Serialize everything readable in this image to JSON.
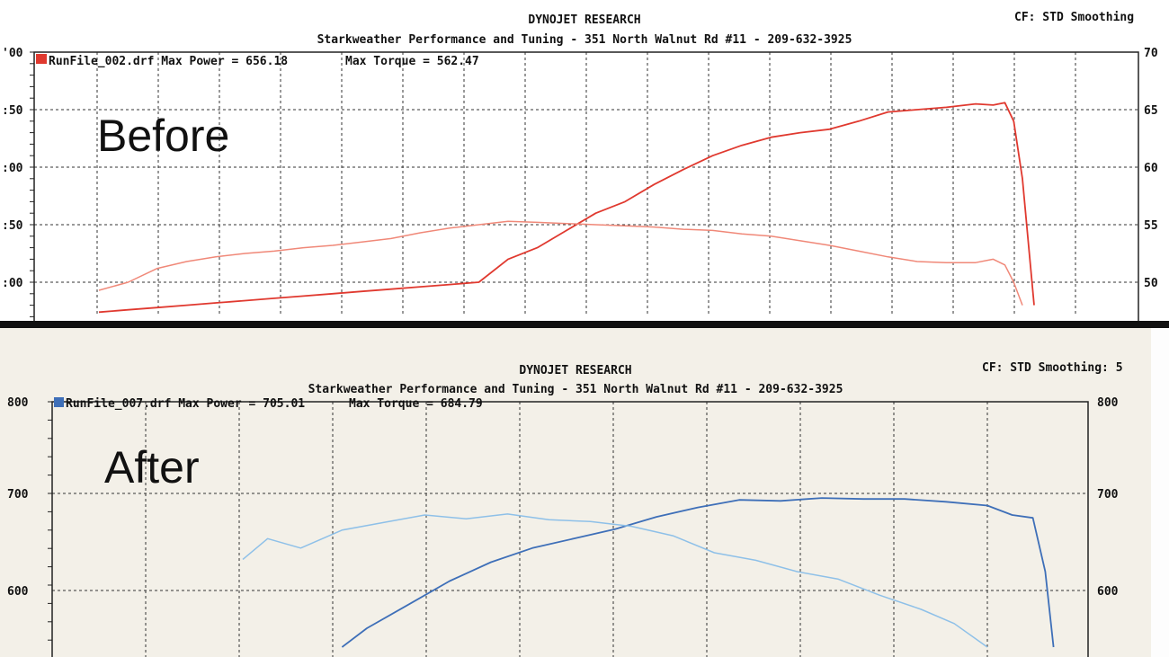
{
  "charts": [
    {
      "panel_label": "Before",
      "header_brand": "DYNOJET RESEARCH",
      "header_shop": "Starkweather Performance and Tuning - 351 North Walnut Rd #11 - 209-632-3925",
      "header_cf": "CF: STD  Smoothing",
      "legend_run": "RunFile_002.drf Max Power = 656.18",
      "legend_torque": "Max Torque = 562.47",
      "colors": {
        "power": "#e0392f",
        "torque": "#f08878",
        "swatch": "#e0392f"
      }
    },
    {
      "panel_label": "After",
      "header_brand": "DYNOJET RESEARCH",
      "header_shop": "Starkweather Performance and Tuning - 351 North Walnut Rd #11 - 209-632-3925",
      "header_cf": "CF: STD  Smoothing: 5",
      "legend_run": "RunFile_007.drf Max Power = 705.01",
      "legend_torque": "Max Torque = 684.79",
      "colors": {
        "power": "#3e6fb8",
        "torque": "#8ec0e8",
        "swatch": "#3e6fb8"
      }
    }
  ],
  "chart_data": [
    {
      "type": "line",
      "title": "DYNOJET RESEARCH",
      "subtitle": "Starkweather Performance and Tuning - 351 North Walnut Rd #11 - 209-632-3925",
      "ylim": [
        480,
        700
      ],
      "y_ticks": [
        "700",
        "650",
        "600",
        "550",
        "500"
      ],
      "y_ticks_right": [
        "700",
        "650",
        "600",
        "550",
        "500"
      ],
      "y_tick_labels_left": [
        "'00",
        ":50",
        ":00",
        ":50",
        ":00"
      ],
      "y_tick_labels_right": [
        "70",
        "65",
        "60",
        "55",
        "50"
      ],
      "x_count": 18,
      "series": [
        {
          "name": "Max Power",
          "x": [
            0,
            0.5,
            1,
            1.5,
            2,
            2.5,
            3,
            3.5,
            4,
            4.5,
            5,
            5.5,
            6,
            6.5,
            7,
            7.5,
            8,
            8.5,
            9,
            9.5,
            10,
            10.5,
            11,
            11.5,
            12,
            12.5,
            13,
            13.5,
            14,
            14.5,
            15,
            15.3,
            15.5,
            15.65,
            15.8,
            16.0
          ],
          "values": [
            474,
            476,
            478,
            480,
            482,
            484,
            486,
            488,
            490,
            492,
            494,
            496,
            498,
            500,
            520,
            530,
            545,
            560,
            570,
            585,
            598,
            610,
            619,
            626,
            630,
            633,
            640,
            648,
            650,
            652,
            655,
            654,
            656,
            640,
            590,
            480
          ]
        },
        {
          "name": "Max Torque",
          "x": [
            0,
            0.5,
            1,
            1.5,
            2,
            2.5,
            3,
            3.5,
            4,
            4.5,
            5,
            5.5,
            6,
            6.5,
            7,
            7.5,
            8,
            8.5,
            9,
            9.5,
            10,
            10.5,
            11,
            11.5,
            12,
            12.5,
            13,
            13.5,
            14,
            14.5,
            15,
            15.3,
            15.5,
            15.65,
            15.8
          ],
          "values": [
            493,
            500,
            512,
            518,
            522,
            525,
            527,
            530,
            532,
            535,
            538,
            543,
            547,
            550,
            553,
            552,
            551,
            550,
            549,
            548,
            546,
            545,
            542,
            540,
            536,
            532,
            527,
            522,
            518,
            517,
            517,
            520,
            515,
            500,
            480
          ]
        }
      ]
    },
    {
      "type": "line",
      "title": "DYNOJET RESEARCH",
      "subtitle": "Starkweather Performance and Tuning - 351 North Walnut Rd #11 - 209-632-3925",
      "ylim": [
        540,
        800
      ],
      "y_ticks": [
        "800",
        "700",
        "600"
      ],
      "y_tick_labels_left": [
        "800",
        "700",
        "600"
      ],
      "y_tick_labels_right": [
        "800",
        "700",
        "600"
      ],
      "x_count": 11,
      "series": [
        {
          "name": "Max Power",
          "x": [
            2.2,
            2.5,
            3,
            3.5,
            4,
            4.5,
            5,
            5.5,
            6,
            6.5,
            7,
            7.5,
            8,
            8.5,
            9,
            9.5,
            10,
            10.3,
            10.55,
            10.7,
            10.8
          ],
          "values": [
            540,
            560,
            585,
            610,
            630,
            645,
            655,
            665,
            678,
            688,
            696,
            695,
            698,
            697,
            697,
            694,
            690,
            680,
            677,
            620,
            540
          ]
        },
        {
          "name": "Max Torque",
          "x": [
            1,
            1.3,
            1.7,
            2.2,
            2.7,
            3.2,
            3.7,
            4.2,
            4.7,
            5.2,
            5.7,
            6.2,
            6.7,
            7.2,
            7.7,
            8.2,
            8.7,
            9.2,
            9.6,
            10
          ],
          "values": [
            633,
            655,
            645,
            664,
            672,
            680,
            676,
            681,
            675,
            673,
            668,
            658,
            640,
            632,
            620,
            612,
            595,
            580,
            565,
            540
          ]
        }
      ]
    }
  ]
}
